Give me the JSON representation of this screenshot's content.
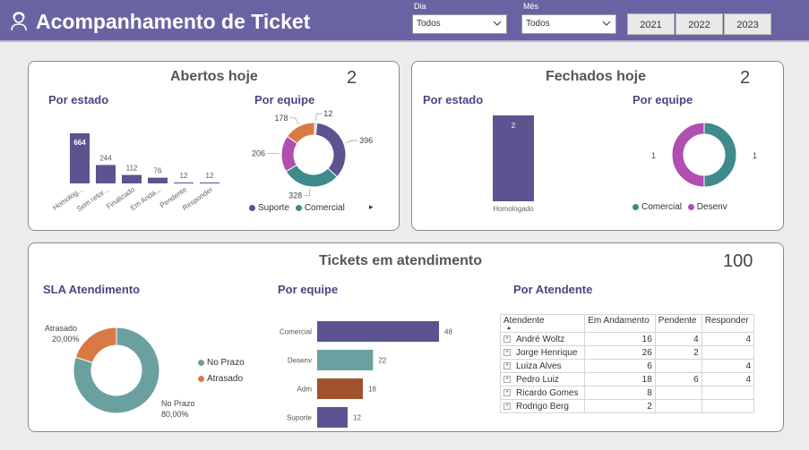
{
  "header": {
    "title": "Acompanhamento de Ticket",
    "logo_icon": "agent-icon",
    "filters": {
      "dia_label": "Dia",
      "dia_value": "Todos",
      "mes_label": "Mês",
      "mes_value": "Todos"
    },
    "years": [
      "2021",
      "2022",
      "2023"
    ]
  },
  "colors": {
    "purple": "#5b5490",
    "teal": "#3f8a8a",
    "magenta": "#b04fb0",
    "orange": "#d97a45",
    "slate": "#6aa0a0",
    "brown": "#a0522d"
  },
  "abertos": {
    "title": "Abertos hoje",
    "count": "2",
    "por_estado_label": "Por estado",
    "por_equipe_label": "Por equipe",
    "legend_expand": "▸"
  },
  "fechados": {
    "title": "Fechados hoje",
    "count": "2",
    "por_estado_label": "Por estado",
    "por_equipe_label": "Por equipe"
  },
  "atendimento": {
    "title": "Tickets em atendimento",
    "count": "100",
    "sla_label": "SLA Atendimento",
    "por_equipe_label": "Por equipe",
    "por_atendente_label": "Por Atendente"
  },
  "table": {
    "headers": [
      "Atendente",
      "Em Andamento",
      "Pendente",
      "Responder"
    ],
    "rows": [
      [
        "André Woltz",
        "16",
        "4",
        "4"
      ],
      [
        "Jorge Henrique",
        "26",
        "2",
        ""
      ],
      [
        "Luiza Alves",
        "6",
        "",
        "4"
      ],
      [
        "Pedro Luiz",
        "18",
        "6",
        "4"
      ],
      [
        "Ricardo Gomes",
        "8",
        "",
        ""
      ],
      [
        "Rodrigo Berg",
        "2",
        "",
        ""
      ]
    ]
  },
  "chart_data": [
    {
      "type": "bar",
      "title": "Por estado",
      "categories": [
        "Homolog...",
        "Sem retor...",
        "Finalizado",
        "Em Anda...",
        "Pendente",
        "Responder"
      ],
      "values": [
        664,
        244,
        112,
        76,
        12,
        12
      ]
    },
    {
      "type": "pie",
      "title": "Por equipe",
      "labels": [
        "Suporte",
        "Comercial",
        "",
        "",
        ""
      ],
      "values": [
        396,
        328,
        206,
        178,
        12
      ],
      "colors": [
        "#5b5490",
        "#3f8a8a",
        "#b04fb0",
        "#d97a45",
        "#c9c9c9"
      ],
      "legend": [
        "Suporte",
        "Comercial"
      ]
    },
    {
      "type": "bar",
      "title": "Por estado",
      "categories": [
        "Homologado"
      ],
      "values": [
        2
      ]
    },
    {
      "type": "pie",
      "title": "Por equipe",
      "labels": [
        "Comercial",
        "Desenv"
      ],
      "values": [
        1,
        1
      ],
      "colors": [
        "#3f8a8a",
        "#b04fb0"
      ],
      "legend": [
        "Comercial",
        "Desenv"
      ]
    },
    {
      "type": "pie",
      "title": "SLA Atendimento",
      "labels": [
        "No Prazo",
        "Atrasado"
      ],
      "values": [
        80,
        20
      ],
      "percent_labels": [
        "80,00%",
        "20,00%"
      ],
      "colors": [
        "#6aa0a0",
        "#d97a45"
      ],
      "legend": [
        "No Prazo",
        "Atrasado"
      ]
    },
    {
      "type": "bar",
      "title": "Por equipe",
      "orientation": "horizontal",
      "categories": [
        "Comercial",
        "Desenv",
        "Adm",
        "Suporte"
      ],
      "values": [
        48,
        22,
        18,
        12
      ],
      "colors": [
        "#5b5490",
        "#6aa0a0",
        "#a0522d",
        "#5b5490"
      ]
    }
  ]
}
